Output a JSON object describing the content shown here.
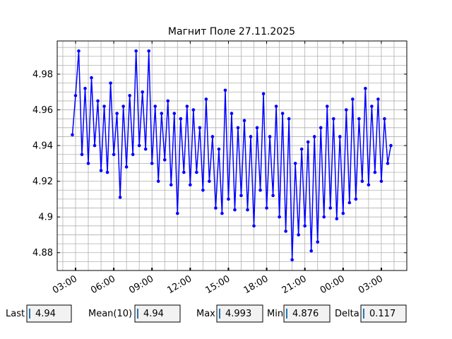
{
  "chart_data": {
    "type": "line",
    "title": "Магнит Поле 27.11.2025",
    "series": [
      {
        "color": "#0000ff",
        "x": [
          2.75,
          3,
          3.25,
          3.5,
          3.75,
          4,
          4.25,
          4.5,
          4.75,
          5,
          5.25,
          5.5,
          5.75,
          6,
          6.25,
          6.5,
          6.75,
          7,
          7.25,
          7.5,
          7.75,
          8,
          8.25,
          8.5,
          8.75,
          9,
          9.25,
          9.5,
          9.75,
          10,
          10.25,
          10.5,
          10.75,
          11,
          11.25,
          11.5,
          11.75,
          12,
          12.25,
          12.5,
          12.75,
          13,
          13.25,
          13.5,
          13.75,
          14,
          14.25,
          14.5,
          14.75,
          15,
          15.25,
          15.5,
          15.75,
          16,
          16.25,
          16.5,
          16.75,
          17,
          17.25,
          17.5,
          17.75,
          18,
          18.25,
          18.5,
          18.75,
          19,
          19.25,
          19.5,
          19.75,
          20,
          20.25,
          20.5,
          20.75,
          21,
          21.25,
          21.5,
          21.75,
          22,
          22.25,
          22.5,
          22.75,
          23,
          23.25,
          23.5,
          23.75,
          24,
          24.25,
          24.5,
          24.75,
          25,
          25.25,
          25.5,
          25.75,
          26,
          26.25,
          26.5,
          26.75,
          27,
          27.25,
          27.5,
          27.75
        ],
        "values": [
          4.946,
          4.968,
          4.993,
          4.935,
          4.972,
          4.93,
          4.978,
          4.94,
          4.965,
          4.926,
          4.962,
          4.925,
          4.975,
          4.935,
          4.958,
          4.911,
          4.962,
          4.928,
          4.968,
          4.935,
          4.993,
          4.94,
          4.97,
          4.938,
          4.993,
          4.93,
          4.962,
          4.92,
          4.958,
          4.932,
          4.965,
          4.918,
          4.958,
          4.902,
          4.955,
          4.925,
          4.962,
          4.918,
          4.96,
          4.925,
          4.95,
          4.915,
          4.966,
          4.92,
          4.945,
          4.905,
          4.938,
          4.902,
          4.971,
          4.91,
          4.958,
          4.904,
          4.95,
          4.912,
          4.954,
          4.904,
          4.945,
          4.895,
          4.95,
          4.915,
          4.969,
          4.905,
          4.945,
          4.912,
          4.962,
          4.9,
          4.958,
          4.892,
          4.955,
          4.876,
          4.93,
          4.89,
          4.938,
          4.895,
          4.942,
          4.881,
          4.945,
          4.886,
          4.95,
          4.9,
          4.962,
          4.905,
          4.955,
          4.899,
          4.945,
          4.902,
          4.96,
          4.908,
          4.966,
          4.91,
          4.955,
          4.92,
          4.972,
          4.918,
          4.962,
          4.925,
          4.966,
          4.92,
          4.955,
          4.93,
          4.94
        ]
      }
    ],
    "xlim": [
      1.56,
      29
    ],
    "xticks": [
      {
        "value": 3,
        "label": "03:00"
      },
      {
        "value": 6,
        "label": "06:00"
      },
      {
        "value": 9,
        "label": "09:00"
      },
      {
        "value": 12,
        "label": "12:00"
      },
      {
        "value": 15,
        "label": "15:00"
      },
      {
        "value": 18,
        "label": "18:00"
      },
      {
        "value": 21,
        "label": "21:00"
      },
      {
        "value": 24,
        "label": "00:00"
      },
      {
        "value": 27,
        "label": "03:00"
      }
    ],
    "xminor": [
      2,
      4,
      5,
      7,
      8,
      10,
      11,
      13,
      14,
      16,
      17,
      19,
      20,
      22,
      23,
      25,
      26,
      28
    ],
    "ylim": [
      4.87,
      4.9986
    ],
    "yticks": [
      4.88,
      4.9,
      4.92,
      4.94,
      4.96,
      4.98
    ],
    "yminor": [
      4.875,
      4.885,
      4.89,
      4.895,
      4.905,
      4.91,
      4.915,
      4.925,
      4.93,
      4.935,
      4.945,
      4.95,
      4.955,
      4.965,
      4.97,
      4.975,
      4.985,
      4.99,
      4.995
    ],
    "grid": true,
    "stats": [
      {
        "label": "Last",
        "value": "4.94"
      },
      {
        "label": "Mean(10)",
        "value": "4.94"
      },
      {
        "label": "Max",
        "value": "4.993"
      },
      {
        "label": "Min",
        "value": "4.876"
      },
      {
        "label": "Delta",
        "value": "0.117"
      }
    ]
  }
}
